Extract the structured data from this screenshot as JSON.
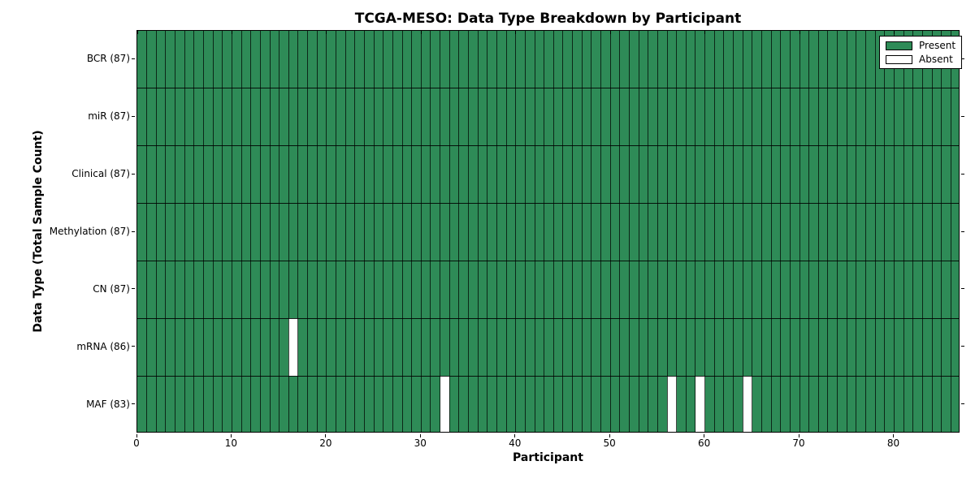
{
  "title": "TCGA-MESO: Data Type Breakdown by Participant",
  "chart_data": {
    "type": "heatmap",
    "title": "TCGA-MESO: Data Type Breakdown by Participant",
    "xlabel": "Participant",
    "ylabel": "Data Type (Total Sample Count)",
    "xlim": [
      0,
      87
    ],
    "x_ticks": [
      0,
      10,
      20,
      30,
      40,
      50,
      60,
      70,
      80
    ],
    "n_participants": 87,
    "grid": true,
    "legend_position": "upper right",
    "legend": [
      {
        "label": "Present",
        "color": "#2E8B57"
      },
      {
        "label": "Absent",
        "color": "#FFFFFF"
      }
    ],
    "rows": [
      {
        "label": "BCR (87)",
        "data_type": "BCR",
        "total": 87,
        "absent_participants": []
      },
      {
        "label": "miR (87)",
        "data_type": "miR",
        "total": 87,
        "absent_participants": []
      },
      {
        "label": "Clinical (87)",
        "data_type": "Clinical",
        "total": 87,
        "absent_participants": []
      },
      {
        "label": "Methylation (87)",
        "data_type": "Methylation",
        "total": 87,
        "absent_participants": []
      },
      {
        "label": "CN (87)",
        "data_type": "CN",
        "total": 87,
        "absent_participants": []
      },
      {
        "label": "mRNA (86)",
        "data_type": "mRNA",
        "total": 86,
        "absent_participants": [
          16
        ]
      },
      {
        "label": "MAF (83)",
        "data_type": "MAF",
        "total": 83,
        "absent_participants": [
          32,
          56,
          59,
          64
        ]
      }
    ],
    "colors": {
      "present": "#2E8B57",
      "absent": "#FFFFFF",
      "cell_border": "#000000",
      "axes": "#000000",
      "background": "#FFFFFF"
    }
  }
}
